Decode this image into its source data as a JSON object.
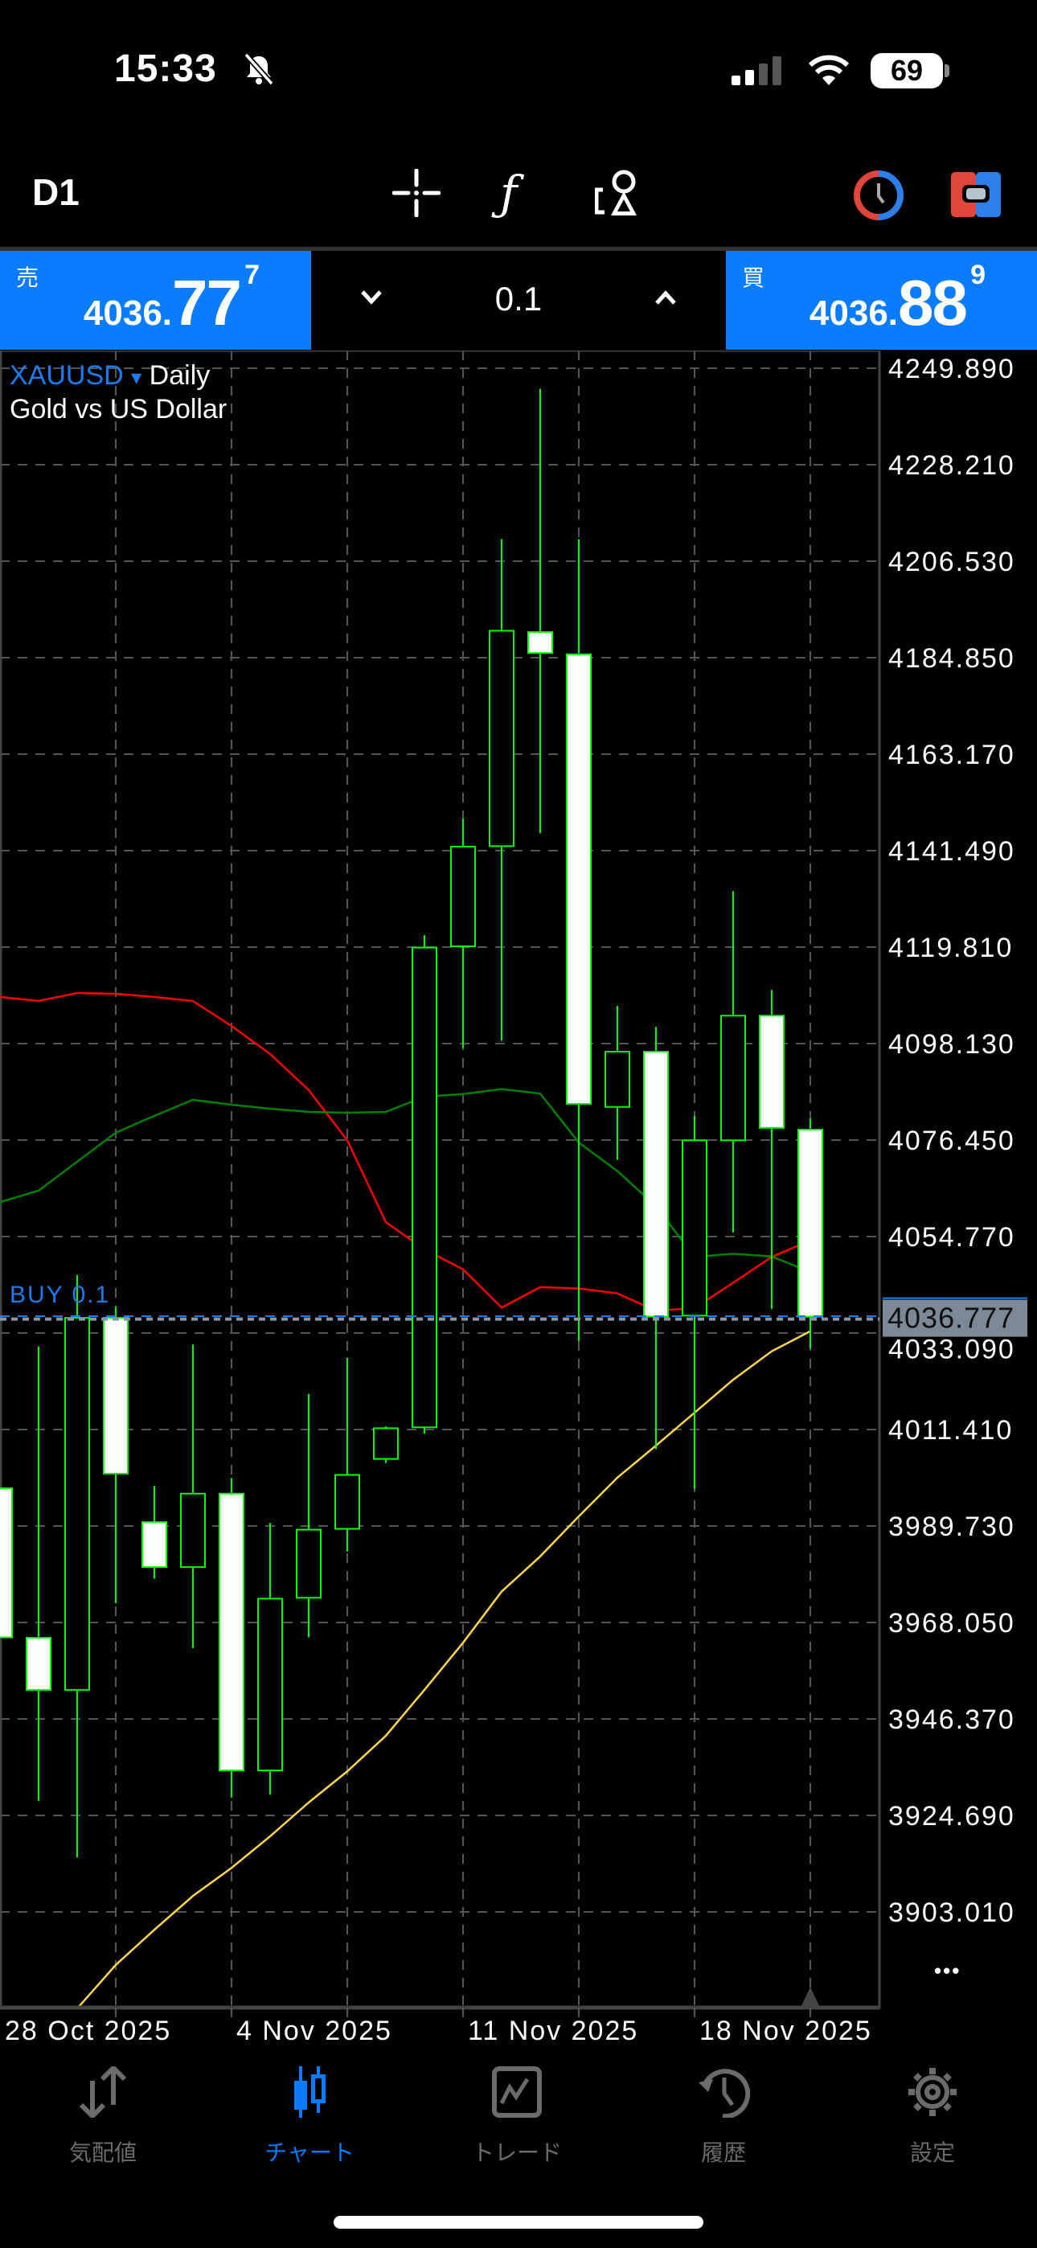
{
  "status_bar": {
    "time": "15:33",
    "battery": "69",
    "icons": [
      "bell-slash-icon",
      "cellular-signal-icon",
      "wifi-icon",
      "battery-icon"
    ]
  },
  "toolbar": {
    "timeframe": "D1",
    "icons": [
      "crosshair-icon",
      "function-icon",
      "objects-icon",
      "one-click-trading-icon",
      "trade-panel-icon"
    ]
  },
  "quote": {
    "sell": {
      "label": "売",
      "price_prefix": "4036.",
      "price_big": "77",
      "price_sup": "7"
    },
    "buy": {
      "label": "買",
      "price_prefix": "4036.",
      "price_big": "88",
      "price_sup": "9"
    },
    "volume": "0.1"
  },
  "chart": {
    "symbol": "XAUUSD",
    "symbol_arrow": "▾",
    "period": "Daily",
    "description": "Gold vs US Dollar",
    "position_label": "BUY 0.1",
    "more_icon": "•••"
  },
  "colors": {
    "accent": "#0a7cff",
    "candle_border": "#00ff00",
    "bear_fill": "#ffffff",
    "bull_fill": "#000000",
    "ma_red": "#ff0000",
    "ma_green": "#008000",
    "ma_yellow": "#ffd54a",
    "bid_line": "#8a96a3",
    "ask_line": "#1a7cf0"
  },
  "chart_data": {
    "type": "candlestick",
    "title": "",
    "x_ticks": [
      "28 Oct 2025",
      "4 Nov 2025",
      "11 Nov 2025",
      "18 Nov 2025"
    ],
    "y_ticks": [
      "4249.890",
      "4228.210",
      "4206.530",
      "4184.850",
      "4163.170",
      "4141.490",
      "4119.810",
      "4098.130",
      "4076.450",
      "4054.770",
      "4033.090",
      "4011.410",
      "3989.730",
      "3968.050",
      "3946.370",
      "3924.690",
      "3903.010"
    ],
    "ylim": [
      3881.3,
      4253.9
    ],
    "current_bid": "4036.777",
    "ask": 4036.889,
    "grid": true,
    "candles": [
      {
        "o": 3998.2,
        "h": 3998.2,
        "l": 3964.7,
        "c": 3964.7
      },
      {
        "o": 3964.6,
        "h": 4030.1,
        "l": 3928.0,
        "c": 3952.9
      },
      {
        "o": 3952.9,
        "h": 4046.1,
        "l": 3915.3,
        "c": 4036.5
      },
      {
        "o": 4036.5,
        "h": 4039.0,
        "l": 3972.4,
        "c": 4001.5
      },
      {
        "o": 3990.6,
        "h": 3998.7,
        "l": 3977.9,
        "c": 3980.5
      },
      {
        "o": 3980.5,
        "h": 4030.5,
        "l": 3962.3,
        "c": 3997.0
      },
      {
        "o": 3997.0,
        "h": 4000.5,
        "l": 3928.7,
        "c": 3934.8
      },
      {
        "o": 3934.8,
        "h": 3990.4,
        "l": 3929.4,
        "c": 3973.4
      },
      {
        "o": 3973.6,
        "h": 4019.4,
        "l": 3964.7,
        "c": 3988.9
      },
      {
        "o": 3989.1,
        "h": 4027.5,
        "l": 3984.0,
        "c": 4001.2
      },
      {
        "o": 4004.8,
        "h": 4012.1,
        "l": 4003.9,
        "c": 4011.7
      },
      {
        "o": 4011.9,
        "h": 4122.5,
        "l": 4010.5,
        "c": 4119.7
      },
      {
        "o": 4120.0,
        "h": 4148.7,
        "l": 4097.2,
        "c": 4142.4
      },
      {
        "o": 4142.5,
        "h": 4211.5,
        "l": 4098.8,
        "c": 4190.9
      },
      {
        "o": 4190.6,
        "h": 4245.3,
        "l": 4145.4,
        "c": 4185.9
      },
      {
        "o": 4185.6,
        "h": 4211.4,
        "l": 4031.3,
        "c": 4084.6
      },
      {
        "o": 4083.9,
        "h": 4106.6,
        "l": 4072.0,
        "c": 4096.3
      },
      {
        "o": 4096.3,
        "h": 4101.9,
        "l": 4007.0,
        "c": 4036.8
      },
      {
        "o": 4037.0,
        "h": 4081.9,
        "l": 3998.0,
        "c": 4076.4
      },
      {
        "o": 4076.4,
        "h": 4132.4,
        "l": 4055.7,
        "c": 4104.4
      },
      {
        "o": 4104.4,
        "h": 4110.2,
        "l": 4038.5,
        "c": 4079.2
      },
      {
        "o": 4078.8,
        "h": 4081.3,
        "l": 4029.6,
        "c": 4036.777
      }
    ],
    "lines": [
      {
        "color": "#ff0000",
        "start": 0,
        "values": [
          4108.6,
          4107.7,
          4109.5,
          4109.3,
          4108.6,
          4107.7,
          4102.1,
          4095.8,
          4087.7,
          4076.4,
          4058.0,
          4051.9,
          4047.4,
          4038.8,
          4043.4,
          4043.1,
          4042.0,
          4038.1,
          4038.7,
          4044.4,
          4050.2,
          4053.9
        ]
      },
      {
        "color": "#008000",
        "start": 0,
        "values": [
          4062.5,
          4065.1,
          4071.6,
          4078.1,
          4081.9,
          4085.5,
          4084.4,
          4083.5,
          4082.8,
          4082.6,
          4082.8,
          4086.2,
          4086.8,
          4087.9,
          4086.9,
          4075.9,
          4069.5,
          4061.6,
          4050.2,
          4050.9,
          4050.3,
          4046.8
        ]
      },
      {
        "color": "#ffd54a",
        "start": 2,
        "values": [
          3881.3,
          3891.1,
          3899.0,
          3906.6,
          3912.9,
          3920.0,
          3927.6,
          3934.6,
          3942.6,
          3952.9,
          3963.5,
          3975.0,
          3982.9,
          3991.9,
          4000.6,
          4007.8,
          4015.2,
          4022.6,
          4029.0,
          4033.5
        ]
      }
    ]
  },
  "tabs": [
    {
      "label": "気配値",
      "icon": "quotes-arrows-icon",
      "active": false
    },
    {
      "label": "チャート",
      "icon": "candlestick-chart-icon",
      "active": true
    },
    {
      "label": "トレード",
      "icon": "trade-chart-icon",
      "active": false
    },
    {
      "label": "履歴",
      "icon": "history-clock-icon",
      "active": false
    },
    {
      "label": "設定",
      "icon": "settings-gear-icon",
      "active": false
    }
  ]
}
